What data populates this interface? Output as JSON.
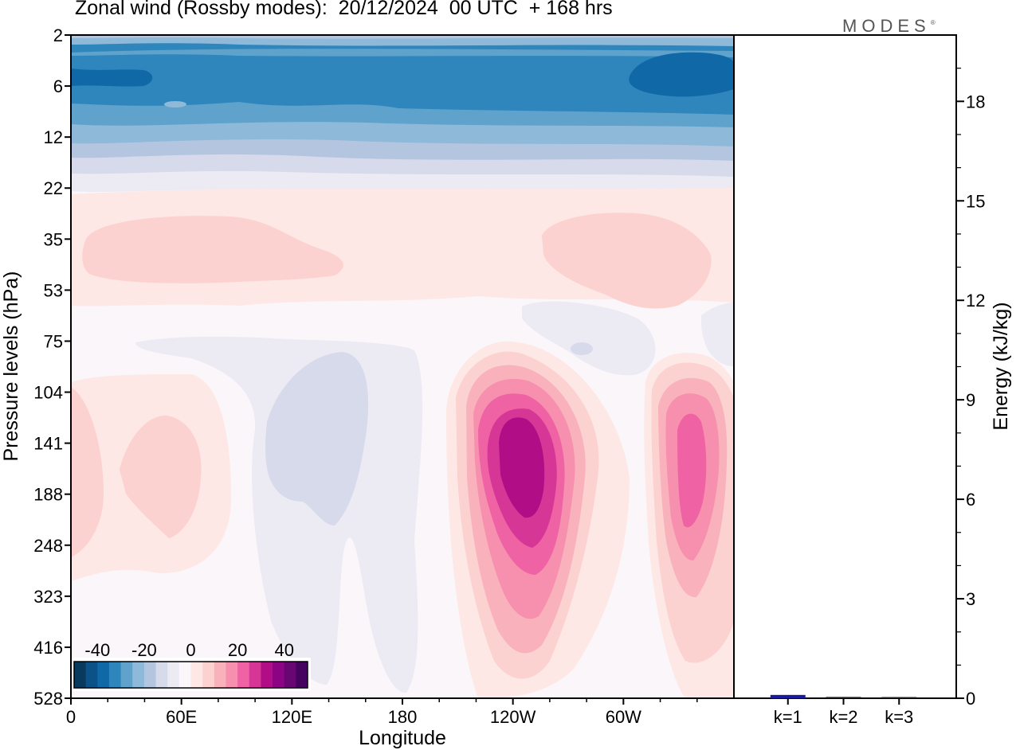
{
  "header": {
    "title": "Zonal wind (Rossby modes):  20/12/2024  00 UTC  + 168 hrs",
    "logo": "MODES",
    "logo_mark": "®"
  },
  "chart_data": [
    {
      "type": "heatmap",
      "title": "Zonal wind (Rossby modes):  20/12/2024  00 UTC  + 168 hrs",
      "xlabel": "Longitude",
      "ylabel": "Pressure levels (hPa)",
      "x_ticks": [
        "0",
        "60E",
        "120E",
        "180",
        "120W",
        "60W"
      ],
      "x_tick_degrees_east": [
        0,
        60,
        120,
        180,
        240,
        300
      ],
      "xlim": [
        0,
        360
      ],
      "y_ticks": [
        2,
        6,
        12,
        22,
        35,
        53,
        75,
        104,
        141,
        188,
        248,
        323,
        416,
        528
      ],
      "y_scale": "model levels, top to bottom",
      "colorbar": {
        "ticks": [
          "-40",
          "-20",
          "0",
          "20",
          "40"
        ],
        "range": [
          -50,
          50
        ],
        "step": 5,
        "colors": [
          "#083a5e",
          "#0a5288",
          "#1168a6",
          "#2f86bc",
          "#5fa2cc",
          "#8eb9d8",
          "#b4c5e0",
          "#d6daeb",
          "#ecebf4",
          "#fbf6f9",
          "#fde8e6",
          "#fbd2d0",
          "#f9b2bb",
          "#f78fae",
          "#ef62a4",
          "#d63696",
          "#b00d87",
          "#8c0383",
          "#680674",
          "#45025f"
        ],
        "location": "bottom-left"
      },
      "features": [
        {
          "pressure_hPa": [
            2,
            16
          ],
          "longitude": [
            0,
            360
          ],
          "wind": "easterly band",
          "min_value": -30
        },
        {
          "pressure_hPa": [
            35,
            53
          ],
          "longitude": [
            10,
            150
          ],
          "wind": "westerly patch",
          "max_value": 10
        },
        {
          "pressure_hPa": [
            35,
            53
          ],
          "longitude": [
            255,
            350
          ],
          "wind": "westerly patch",
          "max_value": 10
        },
        {
          "pressure_hPa": [
            75,
            450
          ],
          "longitude": [
            100,
            190
          ],
          "wind": "easterly patch",
          "min_value": -10
        },
        {
          "pressure_hPa": [
            90,
            400
          ],
          "longitude": [
            205,
            290
          ],
          "wind": "westerly jet",
          "max_value": 40,
          "center_longitude": 240,
          "center_pressure_hPa": 165
        },
        {
          "pressure_hPa": [
            95,
            400
          ],
          "longitude": [
            310,
            360
          ],
          "wind": "westerly jet",
          "max_value": 25,
          "center_longitude": 338,
          "center_pressure_hPa": 165
        },
        {
          "pressure_hPa": [
            110,
            300
          ],
          "longitude": [
            20,
            70
          ],
          "wind": "westerly patch",
          "max_value": 10
        }
      ]
    },
    {
      "type": "bar",
      "categories": [
        "k=1",
        "k=2",
        "k=3"
      ],
      "values": [
        0.1,
        0.04,
        0.02
      ],
      "ylabel": "Energy (kJ/kg)",
      "ylim": [
        0,
        20
      ],
      "y_ticks": [
        0,
        3,
        6,
        9,
        12,
        15,
        18
      ],
      "bar_colors": [
        "#1a1a9c",
        "#222222",
        "#222222"
      ]
    }
  ]
}
